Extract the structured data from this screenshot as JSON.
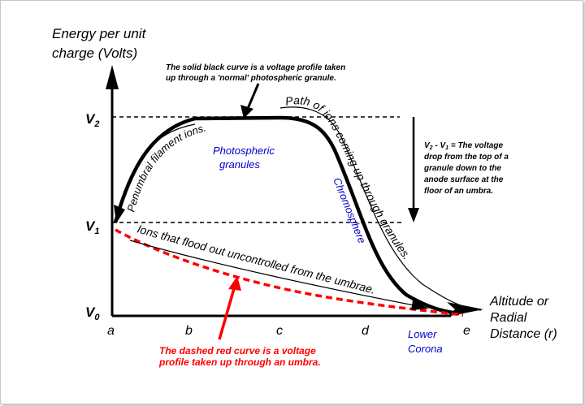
{
  "y_axis": {
    "line1": "Energy per unit",
    "line2": "charge (Volts)"
  },
  "x_axis": {
    "line1": "Altitude or",
    "line2": "Radial",
    "line3": "Distance (r)"
  },
  "levels": {
    "v2": "V",
    "v2_sub": "2",
    "v1": "V",
    "v1_sub": "1",
    "v0": "V",
    "v0_sub": "0"
  },
  "ticks": [
    "a",
    "b",
    "c",
    "d",
    "e"
  ],
  "solid_note": {
    "line1": "The solid black curve is a voltage profile taken",
    "line2": "up through a 'normal' photospheric granule."
  },
  "red_note": {
    "line1": "The dashed red curve is a voltage",
    "line2": "profile taken up through an umbra."
  },
  "drop_note": {
    "line1": "V",
    "line1_sub1": "2",
    "line1_mid": " - V",
    "line1_sub2": "1",
    "line1_rest": " = The voltage",
    "line2": "drop from the top of a",
    "line3": "granule down to the",
    "line4": "anode surface at the",
    "line5": "floor of an umbra."
  },
  "path_labels": {
    "penumbral": "Penumbral filament ions.",
    "coming_up": "Path of ions coming up through granules.",
    "flood": "Ions that flood out uncontrolled from the umbrae."
  },
  "regions": {
    "photo1": "Photospheric",
    "photo2": "granules",
    "chromosphere": "Chromosphere",
    "corona1": "Lower",
    "corona2": "Corona"
  },
  "colors": {
    "red": "#ff0000",
    "blue": "#0000cc",
    "black": "#000000"
  }
}
